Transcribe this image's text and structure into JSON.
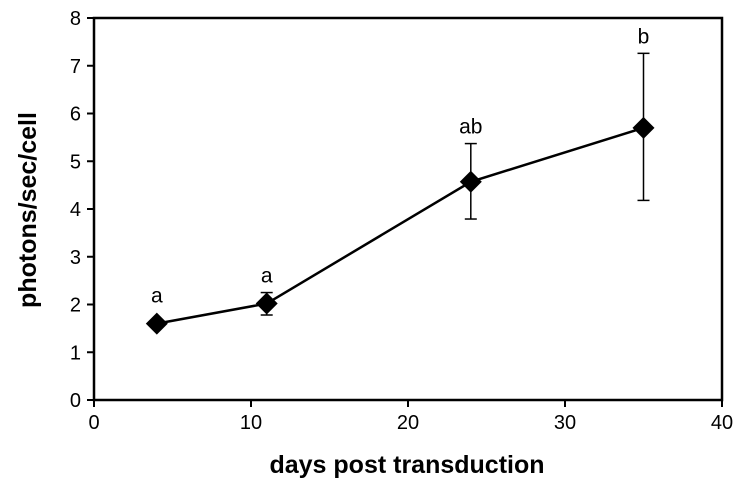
{
  "chart_data": {
    "type": "line",
    "xlabel": "days post transduction",
    "ylabel": "photons/sec/cell",
    "xlim": [
      0,
      40
    ],
    "ylim": [
      0,
      8
    ],
    "x_ticks": [
      0,
      10,
      20,
      30,
      40
    ],
    "y_ticks": [
      0,
      1,
      2,
      3,
      4,
      5,
      6,
      7,
      8
    ],
    "grid": false,
    "legend": "none",
    "marker": "diamond",
    "series": [
      {
        "x": [
          4,
          11,
          24,
          35
        ],
        "y": [
          1.6,
          2.02,
          4.57,
          5.7
        ],
        "error_low": [
          1.6,
          1.78,
          3.79,
          4.18
        ],
        "error_high": [
          1.6,
          2.25,
          5.37,
          7.26
        ],
        "annotations": [
          "a",
          "a",
          "ab",
          "b"
        ]
      }
    ],
    "colors": {
      "line": "#000000",
      "marker": "#000000"
    }
  }
}
